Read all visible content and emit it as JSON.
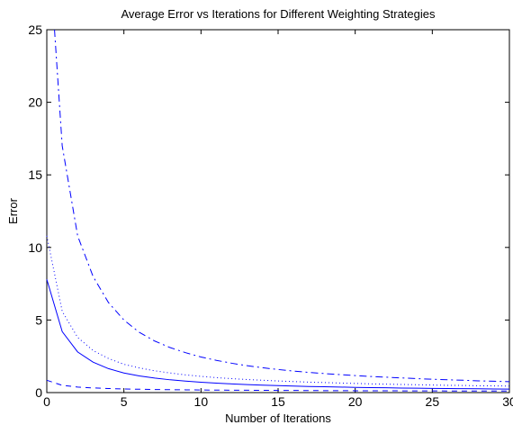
{
  "chart_data": {
    "type": "line",
    "title": "Average Error vs Iterations for Different Weighting Strategies",
    "xlabel": "Number of Iterations",
    "ylabel": "Error",
    "xlim": [
      0,
      30
    ],
    "ylim": [
      0,
      25
    ],
    "xticks": [
      "0",
      "5",
      "10",
      "15",
      "20",
      "25",
      "30"
    ],
    "yticks": [
      "0",
      "5",
      "10",
      "15",
      "20",
      "25"
    ],
    "grid": false,
    "legend": "none",
    "line_color": "#0000ff",
    "series": [
      {
        "line_style": "dash-dot",
        "x": [
          0.5,
          1,
          2,
          3,
          4,
          5,
          6,
          7,
          8,
          9,
          10,
          11,
          12,
          13,
          14,
          15,
          16,
          17,
          18,
          19,
          20,
          21,
          22,
          23,
          24,
          25,
          26,
          27,
          28,
          29,
          30
        ],
        "y": [
          25.0,
          17.0,
          10.8,
          8.0,
          6.2,
          5.0,
          4.15,
          3.55,
          3.1,
          2.75,
          2.45,
          2.22,
          2.02,
          1.85,
          1.71,
          1.59,
          1.48,
          1.39,
          1.31,
          1.24,
          1.17,
          1.11,
          1.06,
          1.01,
          0.96,
          0.92,
          0.88,
          0.85,
          0.81,
          0.78,
          0.75
        ]
      },
      {
        "line_style": "dotted",
        "x": [
          0,
          1,
          2,
          3,
          4,
          5,
          6,
          7,
          8,
          9,
          10,
          11,
          12,
          13,
          14,
          15,
          16,
          17,
          18,
          19,
          20,
          21,
          22,
          23,
          24,
          25,
          26,
          27,
          28,
          29,
          30
        ],
        "y": [
          10.8,
          5.6,
          3.8,
          2.9,
          2.35,
          1.95,
          1.7,
          1.5,
          1.35,
          1.22,
          1.12,
          1.03,
          0.96,
          0.9,
          0.85,
          0.8,
          0.76,
          0.72,
          0.69,
          0.66,
          0.63,
          0.6,
          0.58,
          0.56,
          0.54,
          0.52,
          0.5,
          0.49,
          0.47,
          0.46,
          0.45
        ]
      },
      {
        "line_style": "solid",
        "x": [
          0,
          1,
          2,
          3,
          4,
          5,
          6,
          7,
          8,
          9,
          10,
          11,
          12,
          13,
          14,
          15,
          16,
          17,
          18,
          19,
          20,
          21,
          22,
          23,
          24,
          25,
          26,
          27,
          28,
          29,
          30
        ],
        "y": [
          7.8,
          4.2,
          2.8,
          2.1,
          1.65,
          1.35,
          1.15,
          1.0,
          0.88,
          0.79,
          0.71,
          0.65,
          0.6,
          0.55,
          0.51,
          0.48,
          0.45,
          0.42,
          0.4,
          0.38,
          0.36,
          0.34,
          0.33,
          0.31,
          0.3,
          0.29,
          0.28,
          0.27,
          0.26,
          0.25,
          0.24
        ]
      },
      {
        "line_style": "dashed",
        "x": [
          0,
          1,
          2,
          3,
          4,
          5,
          6,
          7,
          8,
          9,
          10,
          11,
          12,
          13,
          14,
          15,
          16,
          17,
          18,
          19,
          20,
          21,
          22,
          23,
          24,
          25,
          26,
          27,
          28,
          29,
          30
        ],
        "y": [
          0.85,
          0.5,
          0.38,
          0.32,
          0.28,
          0.25,
          0.23,
          0.21,
          0.2,
          0.19,
          0.18,
          0.17,
          0.165,
          0.16,
          0.155,
          0.15,
          0.145,
          0.14,
          0.135,
          0.13,
          0.128,
          0.125,
          0.122,
          0.12,
          0.118,
          0.115,
          0.112,
          0.11,
          0.108,
          0.106,
          0.105
        ]
      }
    ]
  }
}
